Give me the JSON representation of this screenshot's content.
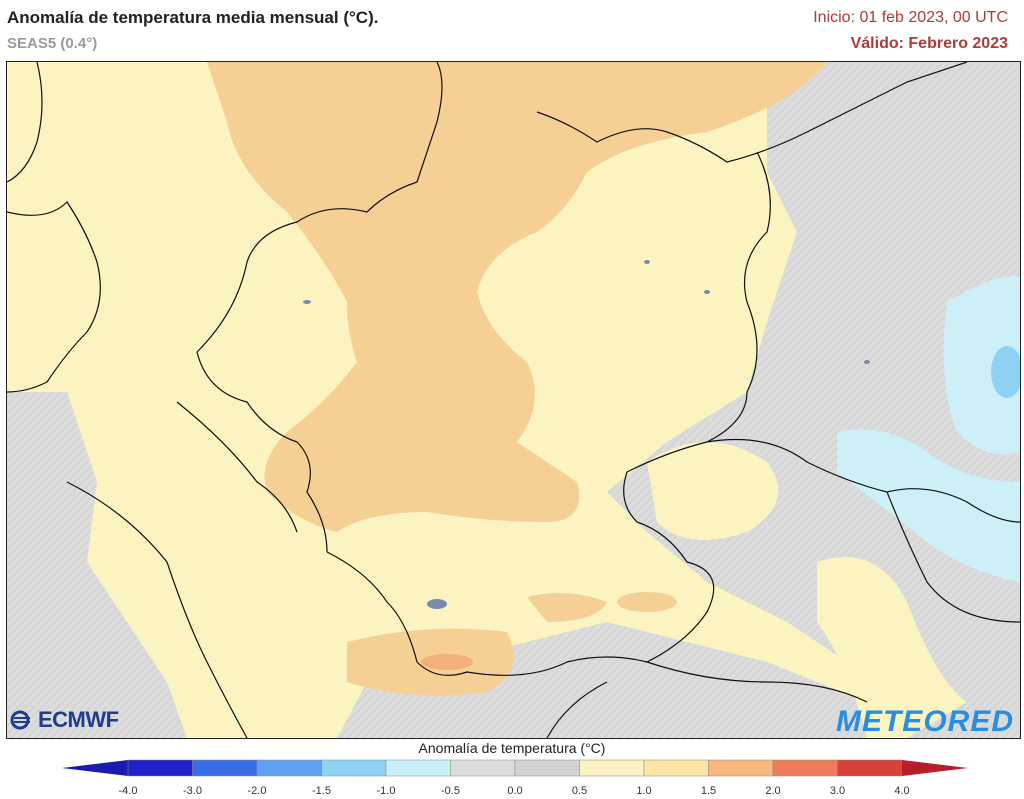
{
  "header": {
    "title": "Anomalía de temperatura media mensual (°C).",
    "subtitle": "SEAS5 (0.4°)",
    "init": "Inicio: 01 feb 2023, 00 UTC",
    "valid": "Válido: Febrero 2023"
  },
  "logos": {
    "left": "ECMWF",
    "right": "METEORED"
  },
  "colorbar": {
    "title": "Anomalía de temperatura (°C)",
    "ticks": [
      "-4.0",
      "-3.0",
      "-2.0",
      "-1.5",
      "-1.0",
      "-0.5",
      "0.0",
      "0.5",
      "1.0",
      "1.5",
      "2.0",
      "3.0",
      "4.0"
    ],
    "colors": [
      "#2020c8",
      "#3a6ee8",
      "#5fa3f0",
      "#8fd3f4",
      "#c9f0fa",
      "#dcdcdc",
      "#d2d2d2",
      "#fbf3c0",
      "#fbe6a6",
      "#f7b87a",
      "#ef7b5c",
      "#d9423a"
    ],
    "low_arrow_color": "#1b1bb0",
    "high_arrow_color": "#b81e2a"
  },
  "map_colors": {
    "neutral": "#dedede",
    "anom_0_5_1_0": "#fbf3c0",
    "anom_1_0_1_5": "#f6cf94",
    "anom_1_5_2_0": "#f3b07a",
    "anom_neg_1_0_0_5": "#cdeff8",
    "anom_neg_1_5_1_0": "#8fd3f4",
    "borders": "#111111"
  }
}
